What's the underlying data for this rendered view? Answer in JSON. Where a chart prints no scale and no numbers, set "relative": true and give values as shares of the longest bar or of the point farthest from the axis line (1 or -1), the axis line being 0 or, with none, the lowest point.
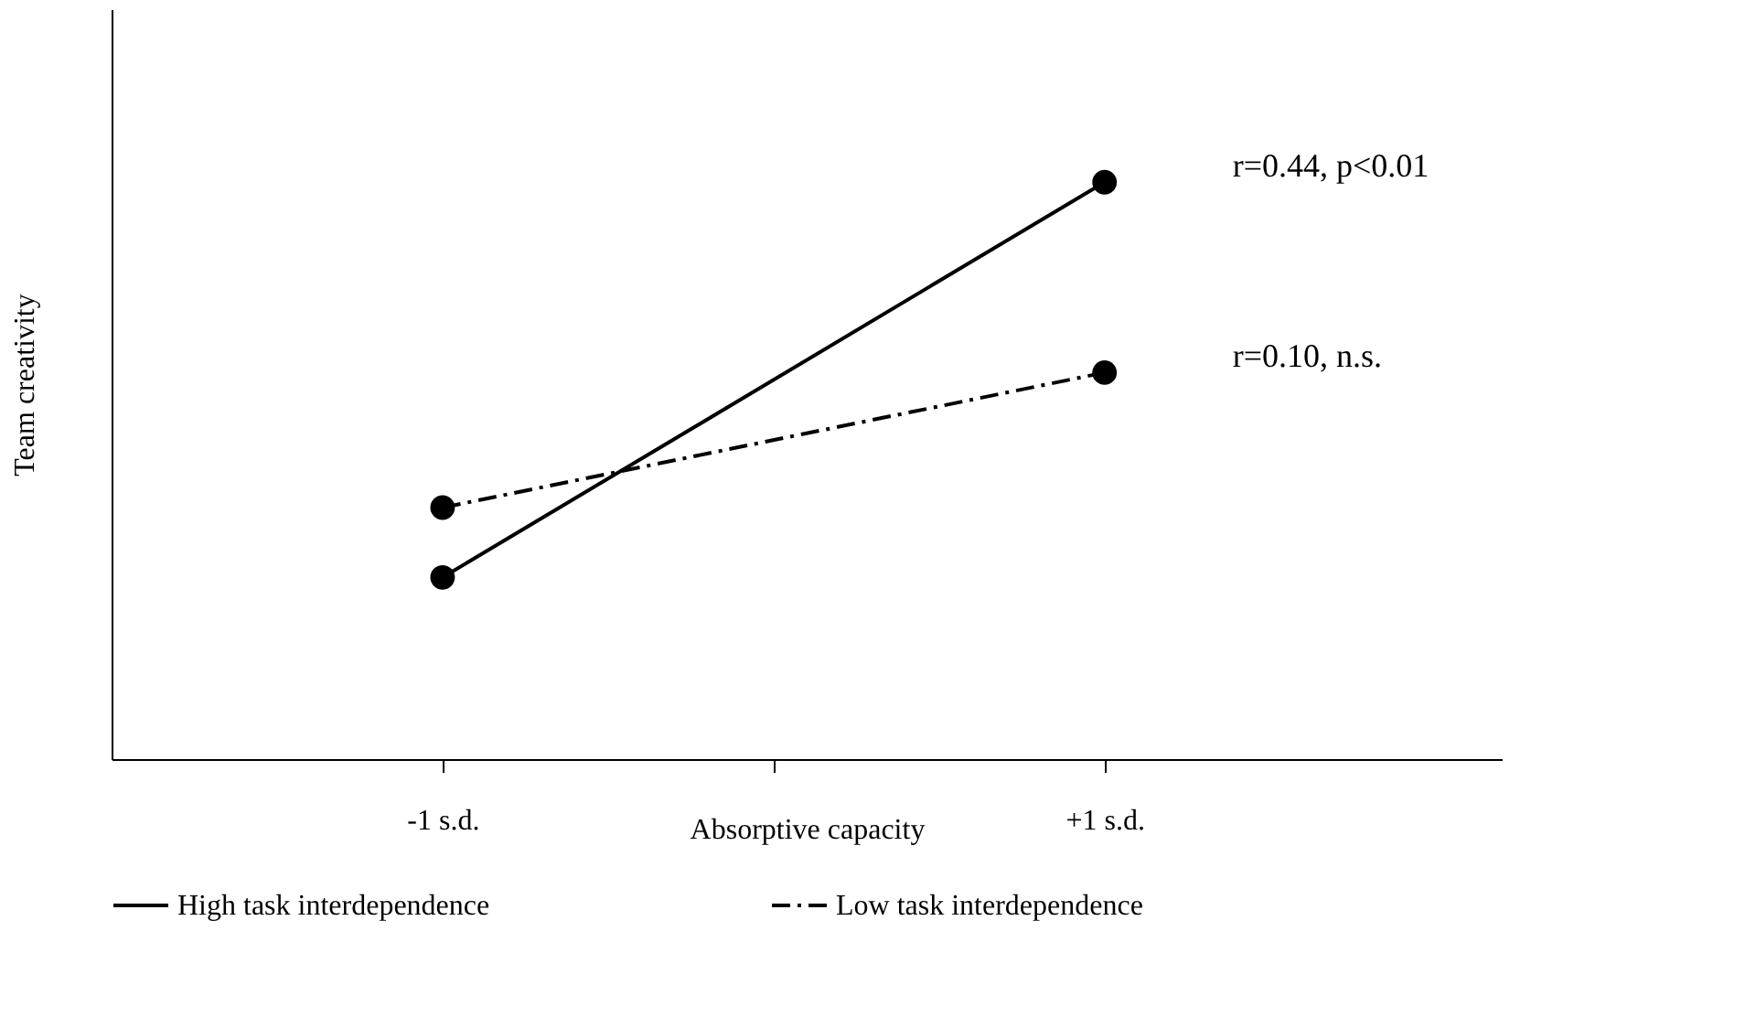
{
  "chart_data": {
    "type": "line",
    "relative": true,
    "xlabel": "Absorptive capacity",
    "ylabel": "Team creativity",
    "categories": [
      "-1 s.d.",
      null,
      "+1 s.d."
    ],
    "series": [
      {
        "name": "High task interdependence",
        "color": "#000000",
        "line_style": "solid",
        "values": [
          0.315,
          null,
          1
        ]
      },
      {
        "name": "Low task interdependence",
        "color": "#000000",
        "line_style": "dashed",
        "values": [
          0.436,
          null,
          0.67
        ]
      }
    ],
    "marker": "circle",
    "legend": "bottom",
    "grid": false,
    "annotations": [
      "r=0.44, p<0.01",
      "r=0.10, n.s."
    ]
  }
}
